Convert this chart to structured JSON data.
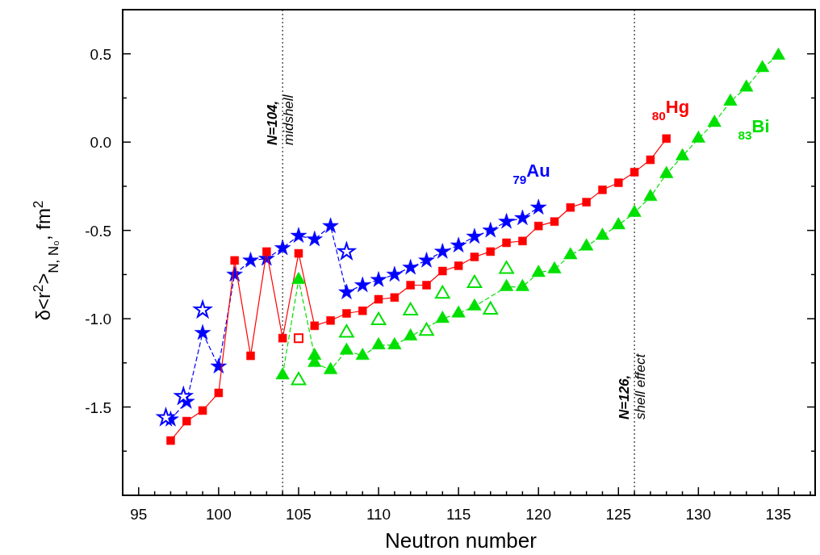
{
  "chart_data": {
    "type": "line",
    "xlabel": "Neutron number",
    "ylabel": "δ<r$^{2}$>$_{N, N₀}$, fm$^{2}$",
    "xlim": [
      94,
      137.3
    ],
    "ylim": [
      -2.0,
      0.75
    ],
    "xticks": [
      {
        "value": 94,
        "label": null
      },
      95,
      {
        "value": 96,
        "label": null
      },
      {
        "value": 97,
        "label": null
      },
      {
        "value": 98,
        "label": null
      },
      {
        "value": 99,
        "label": null
      },
      100,
      {
        "value": 101,
        "label": null
      },
      {
        "value": 102,
        "label": null
      },
      {
        "value": 103,
        "label": null
      },
      {
        "value": 104,
        "label": null
      },
      105,
      {
        "value": 106,
        "label": null
      },
      {
        "value": 107,
        "label": null
      },
      {
        "value": 108,
        "label": null
      },
      {
        "value": 109,
        "label": null
      },
      110,
      {
        "value": 111,
        "label": null
      },
      {
        "value": 112,
        "label": null
      },
      {
        "value": 113,
        "label": null
      },
      {
        "value": 114,
        "label": null
      },
      115,
      {
        "value": 116,
        "label": null
      },
      {
        "value": 117,
        "label": null
      },
      {
        "value": 118,
        "label": null
      },
      {
        "value": 119,
        "label": null
      },
      120,
      {
        "value": 121,
        "label": null
      },
      {
        "value": 122,
        "label": null
      },
      {
        "value": 123,
        "label": null
      },
      {
        "value": 124,
        "label": null
      },
      125,
      {
        "value": 126,
        "label": null
      },
      {
        "value": 127,
        "label": null
      },
      {
        "value": 128,
        "label": null
      },
      {
        "value": 129,
        "label": null
      },
      130,
      {
        "value": 131,
        "label": null
      },
      {
        "value": 132,
        "label": null
      },
      {
        "value": 133,
        "label": null
      },
      {
        "value": 134,
        "label": null
      },
      135,
      {
        "value": 136,
        "label": null
      },
      {
        "value": 137,
        "label": null
      }
    ],
    "yticks": [
      {
        "value": -1.75,
        "label": null
      },
      -1.5,
      {
        "value": -1.25,
        "label": null
      },
      {
        "value": -1.0,
        "label": "-1.0"
      },
      {
        "value": -0.75,
        "label": null
      },
      -0.5,
      {
        "value": -0.25,
        "label": null
      },
      {
        "value": 0,
        "label": "0.0"
      },
      {
        "value": 0.25,
        "label": null
      },
      0.5
    ],
    "grid": false,
    "ref_lines": [
      {
        "axis": "x",
        "value": 104,
        "label": "N=104, midshell",
        "color": "#000000",
        "line_style": "dotted"
      },
      {
        "axis": "x",
        "value": 126,
        "label": "N=126, shell effect",
        "color": "#000000",
        "line_style": "dotted"
      }
    ],
    "series": [
      {
        "name": "$_{79}$Au",
        "type": "line",
        "color": "#0000ff",
        "marker": "star",
        "line_style": "dashed",
        "x": [
          97,
          98,
          99,
          100,
          101,
          102,
          103,
          104,
          105,
          106,
          107,
          108,
          109,
          110,
          111,
          112,
          113,
          114,
          115,
          116,
          117,
          118,
          119,
          120
        ],
        "values": [
          -1.57,
          -1.47,
          -1.08,
          -1.27,
          -0.75,
          -0.67,
          -0.66,
          -0.6,
          -0.53,
          -0.55,
          -0.475,
          -0.85,
          -0.81,
          -0.78,
          -0.75,
          -0.71,
          -0.67,
          -0.62,
          -0.585,
          -0.535,
          -0.5,
          -0.45,
          -0.43,
          -0.37
        ]
      },
      {
        "type": "scatter",
        "color": "#0000ff",
        "marker": "star",
        "x": [
          96.7,
          97.8,
          99,
          108
        ],
        "values": [
          -1.56,
          -1.44,
          -0.95,
          -0.62
        ]
      },
      {
        "name": "$_{80}$Hg",
        "type": "line",
        "color": "#ff0000",
        "marker": "square",
        "line_style": "solid",
        "x": [
          97,
          98,
          99,
          100,
          101,
          102,
          103,
          104,
          105,
          106,
          107,
          108,
          109,
          110,
          111,
          112,
          113,
          114,
          115,
          116,
          117,
          118,
          119,
          120,
          121,
          122,
          123,
          124,
          125,
          126,
          127,
          128
        ],
        "values": [
          -1.69,
          -1.58,
          -1.52,
          -1.42,
          -0.67,
          -1.21,
          -0.62,
          -1.11,
          -0.63,
          -1.04,
          -1.01,
          -0.97,
          -0.955,
          -0.89,
          -0.88,
          -0.81,
          -0.81,
          -0.73,
          -0.7,
          -0.65,
          -0.62,
          -0.57,
          -0.56,
          -0.475,
          -0.45,
          -0.37,
          -0.34,
          -0.27,
          -0.23,
          -0.17,
          -0.1,
          0.02
        ]
      },
      {
        "type": "scatter",
        "color": "#ff0000",
        "marker": "square",
        "x": [
          105
        ],
        "values": [
          -1.11
        ]
      },
      {
        "name": "$_{83}$Bi",
        "type": "line",
        "color": "#00e000",
        "marker": "triangle",
        "line_style": "dashed",
        "x": [
          104,
          105,
          106,
          106,
          107,
          108,
          109,
          110,
          111,
          112,
          114,
          115,
          116,
          118,
          119,
          120,
          121,
          122,
          123,
          124,
          125,
          126,
          127,
          128,
          129,
          130,
          131,
          132,
          133,
          134,
          135
        ],
        "values": [
          -1.32,
          -0.78,
          -1.21,
          -1.25,
          -1.29,
          -1.18,
          -1.21,
          -1.15,
          -1.15,
          -1.1,
          -1.0,
          -0.97,
          -0.93,
          -0.82,
          -0.82,
          -0.74,
          -0.72,
          -0.64,
          -0.59,
          -0.53,
          -0.47,
          -0.4,
          -0.31,
          -0.18,
          -0.08,
          0.02,
          0.11,
          0.23,
          0.31,
          0.42,
          0.49
        ]
      },
      {
        "type": "scatter",
        "color": "#00e000",
        "marker": "triangle",
        "x": [
          105,
          108,
          110,
          112,
          113,
          114,
          116,
          117,
          118
        ],
        "values": [
          -1.35,
          -1.08,
          -1.01,
          -0.955,
          -1.07,
          -0.86,
          -0.8,
          -0.95,
          -0.72
        ]
      }
    ]
  }
}
